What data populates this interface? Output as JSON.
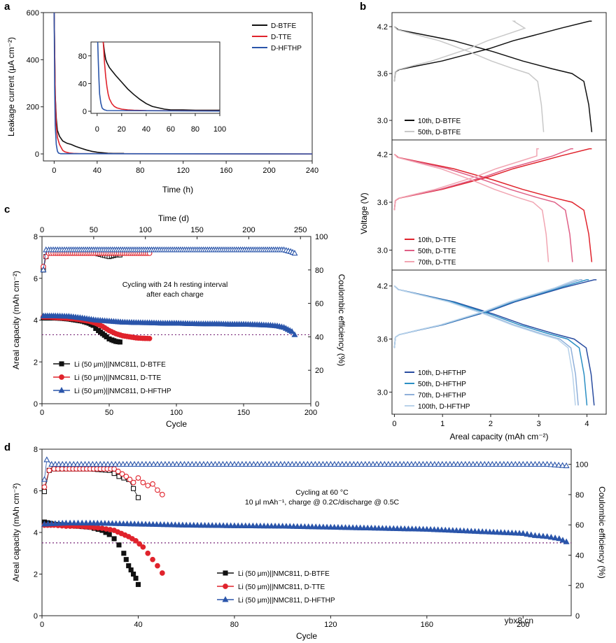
{
  "panels": {
    "a": "a",
    "b": "b",
    "c": "c",
    "d": "d"
  },
  "watermark": "ybx8.cn",
  "colors": {
    "btfe": "#111111",
    "tte": "#e0232c",
    "hfthp": "#2a55aa",
    "btfe_b": [
      "#111111",
      "#c8c8c8"
    ],
    "tte_b": [
      "#e0232c",
      "#df5f86",
      "#f1a5b2"
    ],
    "hfthp_b": [
      "#2a4da0",
      "#2b8fc4",
      "#8fb0da",
      "#b8d2ea"
    ],
    "dotted": "#7a2a7a"
  },
  "chart_data": [
    {
      "id": "a",
      "type": "line",
      "title": "",
      "xlabel": "Time (h)",
      "ylabel": "Leakage current (μA cm⁻²)",
      "xlim": [
        -10,
        240
      ],
      "ylim": [
        0,
        600
      ],
      "xticks": [
        0,
        40,
        80,
        120,
        160,
        200,
        240
      ],
      "yticks": [
        0,
        200,
        400,
        600
      ],
      "legend": [
        "D-BTFE",
        "D-TTE",
        "D-HFTHP"
      ],
      "legend_position": "top-right",
      "series": [
        {
          "name": "D-BTFE",
          "x": [
            0,
            1,
            2,
            3,
            5,
            8,
            12,
            16,
            20,
            25,
            30,
            35,
            40,
            45,
            50,
            55,
            60,
            65
          ],
          "y": [
            600,
            250,
            150,
            100,
            75,
            55,
            45,
            40,
            32,
            24,
            17,
            11,
            7,
            5,
            3,
            2,
            2,
            2
          ]
        },
        {
          "name": "D-TTE",
          "x": [
            0,
            1,
            2,
            3,
            5,
            8,
            10,
            14,
            18,
            24,
            240
          ],
          "y": [
            600,
            250,
            120,
            70,
            40,
            15,
            9,
            4,
            2,
            1,
            0
          ]
        },
        {
          "name": "D-HFTHP",
          "x": [
            0,
            0.5,
            1,
            2,
            3,
            4,
            6,
            240
          ],
          "y": [
            600,
            280,
            120,
            40,
            12,
            4,
            1,
            0
          ]
        }
      ],
      "inset": {
        "xlim": [
          -5,
          100
        ],
        "ylim": [
          0,
          100
        ],
        "xticks": [
          0,
          20,
          40,
          60,
          80,
          100
        ],
        "yticks": [
          0,
          40,
          80
        ],
        "series": [
          {
            "name": "D-BTFE",
            "x": [
              5,
              6,
              7,
              8,
              10,
              15,
              20,
              25,
              30,
              35,
              40,
              45,
              50,
              55,
              60,
              70,
              80,
              90,
              100
            ],
            "y": [
              100,
              85,
              75,
              70,
              63,
              52,
              42,
              32,
              24,
              17,
              11,
              7,
              5,
              3,
              2,
              2,
              1.5,
              1.5,
              1.5
            ]
          },
          {
            "name": "D-TTE",
            "x": [
              5,
              6,
              7,
              8,
              9,
              10,
              12,
              14,
              16,
              20,
              25,
              30,
              40,
              100
            ],
            "y": [
              100,
              70,
              50,
              35,
              25,
              18,
              11,
              7,
              5,
              3,
              2,
              1.5,
              1,
              0.5
            ]
          },
          {
            "name": "D-HFTHP",
            "x": [
              0.5,
              1,
              1.5,
              2,
              3,
              4,
              5,
              6,
              8,
              100
            ],
            "y": [
              100,
              70,
              45,
              25,
              12,
              5,
              3,
              2,
              1,
              0.3
            ]
          }
        ]
      }
    },
    {
      "id": "b",
      "type": "line",
      "xlabel": "Areal capacity (mAh cm⁻²)",
      "ylabel": "Voltage (V)",
      "xlim": [
        -0.05,
        4.4
      ],
      "ylim": [
        2.75,
        4.38
      ],
      "xticks": [
        0,
        1,
        2,
        3,
        4
      ],
      "yticks": [
        3.0,
        3.6,
        4.2
      ],
      "legend_position": "bottom-left",
      "subplots": [
        {
          "legend": [
            "10th, D-BTFE",
            "50th, D-BTFE"
          ],
          "caps": [
            4.1,
            3.1
          ],
          "ends": [
            4.15,
            3.25
          ]
        },
        {
          "legend": [
            "10th, D-TTE",
            "50th, D-TTE",
            "70th, D-TTE"
          ],
          "caps": [
            4.1,
            3.7,
            3.2
          ],
          "ends": [
            4.15,
            3.95,
            3.55
          ]
        },
        {
          "legend": [
            "10th, D-HFTHP",
            "50th, D-HFTHP",
            "70th, D-HFTHP",
            "100th, D-HFTHP"
          ],
          "caps": [
            4.15,
            4.0,
            3.82,
            3.76
          ],
          "ends": [
            4.2,
            4.12,
            4.05,
            4.0
          ]
        }
      ]
    },
    {
      "id": "c",
      "type": "scatter",
      "xlabel": "Cycle",
      "ylabel": "Areal capacity (mAh cm⁻²)",
      "y2label": "Coulombic efficiency (%)",
      "top_label": "Time (d)",
      "xlim": [
        0,
        200
      ],
      "ylim": [
        0,
        8
      ],
      "y2lim": [
        0,
        100
      ],
      "toplim": [
        0,
        260
      ],
      "xticks": [
        0,
        50,
        100,
        150,
        200
      ],
      "yticks": [
        0,
        2,
        4,
        6,
        8
      ],
      "y2ticks": [
        0,
        20,
        40,
        60,
        80,
        100
      ],
      "topticks": [
        0,
        50,
        100,
        150,
        200,
        250
      ],
      "threshold": 3.3,
      "annotation": [
        "Cycling with 24 h resting interval",
        "after each charge"
      ],
      "legend": [
        "Li (50 μm)||NMC811, D-BTFE",
        "Li (50 μm)||NMC811, D-TTE",
        "Li (50 μm)||NMC811, D-HFTHP"
      ],
      "legend_position": "bottom-left",
      "capacity": [
        {
          "name": "D-BTFE",
          "x": [
            1,
            5,
            10,
            15,
            20,
            25,
            30,
            35,
            38,
            40,
            42,
            45,
            48,
            50,
            52,
            55,
            58
          ],
          "y": [
            4.1,
            4.1,
            4.1,
            4.08,
            4.05,
            4.0,
            3.95,
            3.85,
            3.75,
            3.6,
            3.5,
            3.35,
            3.2,
            3.1,
            3.05,
            2.98,
            2.95
          ]
        },
        {
          "name": "D-TTE",
          "x": [
            1,
            5,
            10,
            15,
            20,
            25,
            30,
            35,
            40,
            45,
            50,
            55,
            60,
            65,
            70,
            75,
            80
          ],
          "y": [
            4.15,
            4.15,
            4.12,
            4.1,
            4.08,
            4.05,
            4.0,
            3.95,
            3.85,
            3.7,
            3.5,
            3.35,
            3.25,
            3.2,
            3.15,
            3.13,
            3.12
          ]
        },
        {
          "name": "D-HFTHP",
          "x": [
            1,
            10,
            20,
            30,
            40,
            50,
            60,
            70,
            80,
            90,
            100,
            110,
            120,
            130,
            140,
            150,
            160,
            170,
            175,
            180,
            183,
            186,
            188
          ],
          "y": [
            4.2,
            4.2,
            4.18,
            4.1,
            4.0,
            3.95,
            3.9,
            3.88,
            3.87,
            3.85,
            3.85,
            3.83,
            3.82,
            3.82,
            3.8,
            3.8,
            3.78,
            3.75,
            3.72,
            3.65,
            3.55,
            3.45,
            3.3
          ]
        }
      ],
      "ce": [
        {
          "name": "D-BTFE",
          "x": [
            1,
            3,
            5,
            10,
            20,
            30,
            40,
            45,
            50,
            55,
            58
          ],
          "y": [
            80,
            88,
            90,
            90,
            90,
            90,
            90,
            89,
            88,
            89,
            89
          ]
        },
        {
          "name": "D-TTE",
          "x": [
            1,
            3,
            5,
            10,
            20,
            30,
            40,
            50,
            60,
            70,
            80
          ],
          "y": [
            82,
            88,
            90,
            90,
            90,
            90,
            90,
            90,
            90,
            90,
            90
          ]
        },
        {
          "name": "D-HFTHP",
          "x": [
            1,
            3,
            5,
            10,
            20,
            40,
            60,
            80,
            100,
            120,
            140,
            160,
            180,
            185,
            188
          ],
          "y": [
            80,
            92,
            92,
            92,
            92,
            92,
            92,
            92,
            92,
            92,
            92,
            92,
            92,
            91,
            90
          ]
        }
      ]
    },
    {
      "id": "d",
      "type": "scatter",
      "xlabel": "Cycle",
      "ylabel": "Areal capacity (mAh cm⁻²)",
      "y2label": "Coulombic efficiency (%)",
      "xlim": [
        0,
        220
      ],
      "ylim": [
        0,
        8
      ],
      "y2lim": [
        0,
        110
      ],
      "xticks": [
        0,
        40,
        80,
        120,
        160,
        200
      ],
      "yticks": [
        0,
        2,
        4,
        6,
        8
      ],
      "y2ticks": [
        0,
        20,
        40,
        60,
        80,
        100
      ],
      "threshold": 3.5,
      "annotation": [
        "Cycling at 60 °C",
        "10 μl mAh⁻¹, charge @ 0.2C/discharge @ 0.5C"
      ],
      "legend": [
        "Li (50 μm)||NMC811, D-BTFE",
        "Li (50 μm)||NMC811, D-TTE",
        "Li (50 μm)||NMC811, D-HFTHP"
      ],
      "legend_position": "bottom-right",
      "capacity": [
        {
          "name": "D-BTFE",
          "x": [
            1,
            5,
            10,
            15,
            20,
            25,
            28,
            30,
            32,
            34,
            35,
            36,
            37,
            38,
            39,
            40
          ],
          "y": [
            4.5,
            4.4,
            4.35,
            4.3,
            4.25,
            4.1,
            3.9,
            3.7,
            3.4,
            3.0,
            2.7,
            2.4,
            2.2,
            2.0,
            1.8,
            1.5
          ]
        },
        {
          "name": "D-TTE",
          "x": [
            1,
            5,
            10,
            15,
            20,
            25,
            30,
            33,
            36,
            39,
            42,
            44,
            46,
            48,
            50
          ],
          "y": [
            4.35,
            4.35,
            4.3,
            4.3,
            4.25,
            4.2,
            4.1,
            3.95,
            3.8,
            3.6,
            3.3,
            3.0,
            2.7,
            2.4,
            2.05
          ]
        },
        {
          "name": "D-HFTHP",
          "x": [
            1,
            10,
            20,
            40,
            60,
            80,
            100,
            120,
            140,
            160,
            180,
            200,
            205,
            210,
            215,
            218
          ],
          "y": [
            4.4,
            4.45,
            4.45,
            4.4,
            4.35,
            4.32,
            4.3,
            4.25,
            4.2,
            4.15,
            4.05,
            3.95,
            3.85,
            3.8,
            3.7,
            3.55
          ]
        }
      ],
      "ce": [
        {
          "name": "D-BTFE",
          "x": [
            1,
            3,
            5,
            10,
            20,
            28,
            30,
            32,
            34,
            36,
            38,
            40
          ],
          "y": [
            82,
            96,
            97,
            97,
            97,
            96,
            94,
            92,
            91,
            90,
            84,
            78
          ]
        },
        {
          "name": "D-TTE",
          "x": [
            1,
            3,
            5,
            10,
            20,
            30,
            35,
            38,
            40,
            42,
            44,
            46,
            48,
            50
          ],
          "y": [
            85,
            96,
            97,
            97,
            97,
            97,
            92,
            88,
            91,
            88,
            86,
            87,
            83,
            80
          ]
        },
        {
          "name": "D-HFTHP",
          "x": [
            1,
            2,
            4,
            10,
            40,
            80,
            120,
            160,
            200,
            210,
            218
          ],
          "y": [
            90,
            103,
            100,
            100,
            100,
            100,
            100,
            100,
            100,
            100,
            99
          ]
        }
      ]
    }
  ]
}
